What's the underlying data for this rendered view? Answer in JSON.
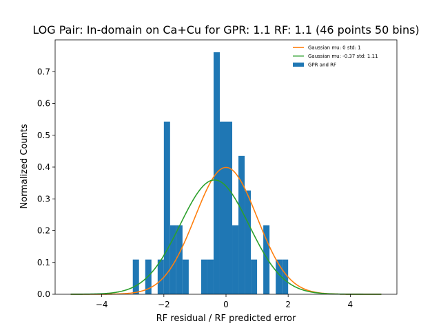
{
  "chart_data": {
    "type": "bar",
    "title": "LOG Pair: In-domain on Ca+Cu for GPR: 1.1 RF: 1.1 (46 points 50 bins)",
    "xlabel": "RF residual / RF predicted error",
    "ylabel": "Normalized Counts",
    "xlim": [
      -5.5,
      5.5
    ],
    "ylim": [
      0,
      0.8
    ],
    "xticks": [
      -4,
      -2,
      0,
      2,
      4
    ],
    "yticks": [
      0.0,
      0.1,
      0.2,
      0.3,
      0.4,
      0.5,
      0.6,
      0.7
    ],
    "grid": false,
    "legend_position": "top-right",
    "histogram": {
      "name": "GPR and RF",
      "color": "#1f77b4",
      "bin_width": 0.2,
      "bins": [
        {
          "x0": -3.0,
          "x1": -2.8,
          "height": 0.109
        },
        {
          "x0": -2.6,
          "x1": -2.4,
          "height": 0.109
        },
        {
          "x0": -2.2,
          "x1": -2.0,
          "height": 0.109
        },
        {
          "x0": -2.0,
          "x1": -1.8,
          "height": 0.543
        },
        {
          "x0": -1.8,
          "x1": -1.6,
          "height": 0.217
        },
        {
          "x0": -1.6,
          "x1": -1.4,
          "height": 0.217
        },
        {
          "x0": -1.4,
          "x1": -1.2,
          "height": 0.109
        },
        {
          "x0": -0.8,
          "x1": -0.6,
          "height": 0.109
        },
        {
          "x0": -0.6,
          "x1": -0.4,
          "height": 0.109
        },
        {
          "x0": -0.4,
          "x1": -0.2,
          "height": 0.761
        },
        {
          "x0": -0.2,
          "x1": 0.0,
          "height": 0.543
        },
        {
          "x0": 0.0,
          "x1": 0.2,
          "height": 0.543
        },
        {
          "x0": 0.2,
          "x1": 0.4,
          "height": 0.217
        },
        {
          "x0": 0.4,
          "x1": 0.6,
          "height": 0.435
        },
        {
          "x0": 0.6,
          "x1": 0.8,
          "height": 0.326
        },
        {
          "x0": 0.8,
          "x1": 1.0,
          "height": 0.109
        },
        {
          "x0": 1.2,
          "x1": 1.4,
          "height": 0.217
        },
        {
          "x0": 1.6,
          "x1": 1.8,
          "height": 0.109
        },
        {
          "x0": 1.8,
          "x1": 2.0,
          "height": 0.109
        }
      ]
    },
    "series": [
      {
        "name": "Gaussian mu: 0 std: 1",
        "mu": 0,
        "std": 1,
        "color": "#ff7f0e",
        "x_range": [
          -5,
          5
        ]
      },
      {
        "name": "Gaussian mu: -0.37 std: 1.11",
        "mu": -0.37,
        "std": 1.11,
        "color": "#2ca02c",
        "x_range": [
          -5,
          5
        ]
      }
    ],
    "legend": [
      {
        "label": "Gaussian mu: 0 std: 1",
        "kind": "line",
        "color": "#ff7f0e"
      },
      {
        "label": "Gaussian mu: -0.37 std: 1.11",
        "kind": "line",
        "color": "#2ca02c"
      },
      {
        "label": "GPR and RF",
        "kind": "patch",
        "color": "#1f77b4"
      }
    ]
  }
}
